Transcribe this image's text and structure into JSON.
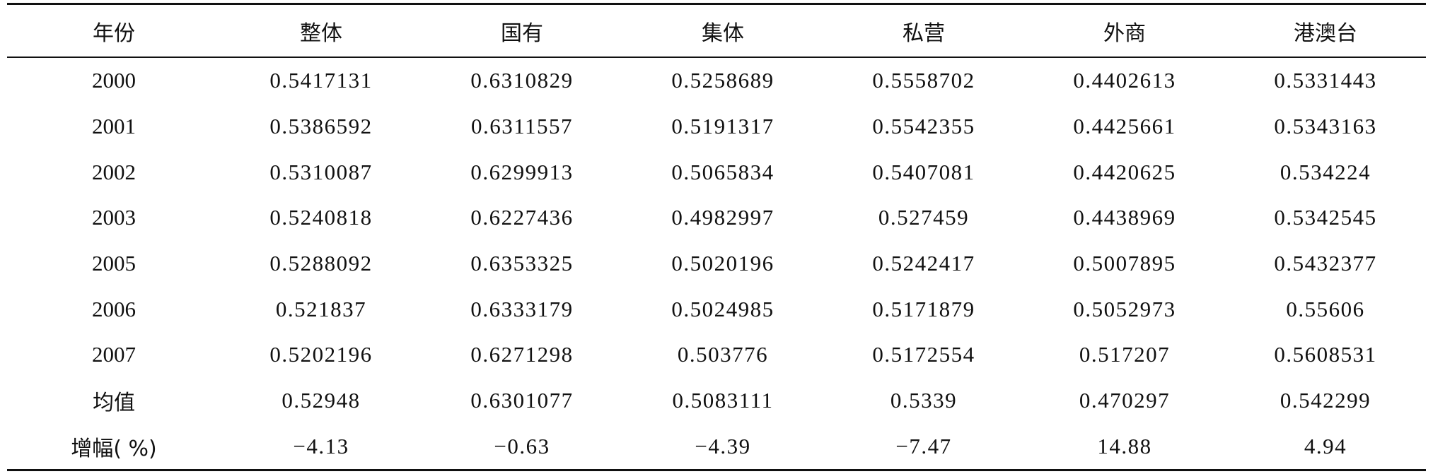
{
  "table": {
    "header": [
      "年份",
      "整体",
      "国有",
      "集体",
      "私营",
      "外商",
      "港澳台"
    ],
    "rows": [
      [
        "2000",
        "0.5417131",
        "0.6310829",
        "0.5258689",
        "0.5558702",
        "0.4402613",
        "0.5331443"
      ],
      [
        "2001",
        "0.5386592",
        "0.6311557",
        "0.5191317",
        "0.5542355",
        "0.4425661",
        "0.5343163"
      ],
      [
        "2002",
        "0.5310087",
        "0.6299913",
        "0.5065834",
        "0.5407081",
        "0.4420625",
        "0.534224"
      ],
      [
        "2003",
        "0.5240818",
        "0.6227436",
        "0.4982997",
        "0.527459",
        "0.4438969",
        "0.5342545"
      ],
      [
        "2005",
        "0.5288092",
        "0.6353325",
        "0.5020196",
        "0.5242417",
        "0.5007895",
        "0.5432377"
      ],
      [
        "2006",
        "0.521837",
        "0.6333179",
        "0.5024985",
        "0.5171879",
        "0.5052973",
        "0.55606"
      ],
      [
        "2007",
        "0.5202196",
        "0.6271298",
        "0.503776",
        "0.5172554",
        "0.517207",
        "0.5608531"
      ],
      [
        "均值",
        "0.52948",
        "0.6301077",
        "0.5083111",
        "0.5339",
        "0.470297",
        "0.542299"
      ],
      [
        "增幅( %)",
        "−4.13",
        "−0.63",
        "−4.39",
        "−7.47",
        "14.88",
        "4.94"
      ]
    ]
  }
}
